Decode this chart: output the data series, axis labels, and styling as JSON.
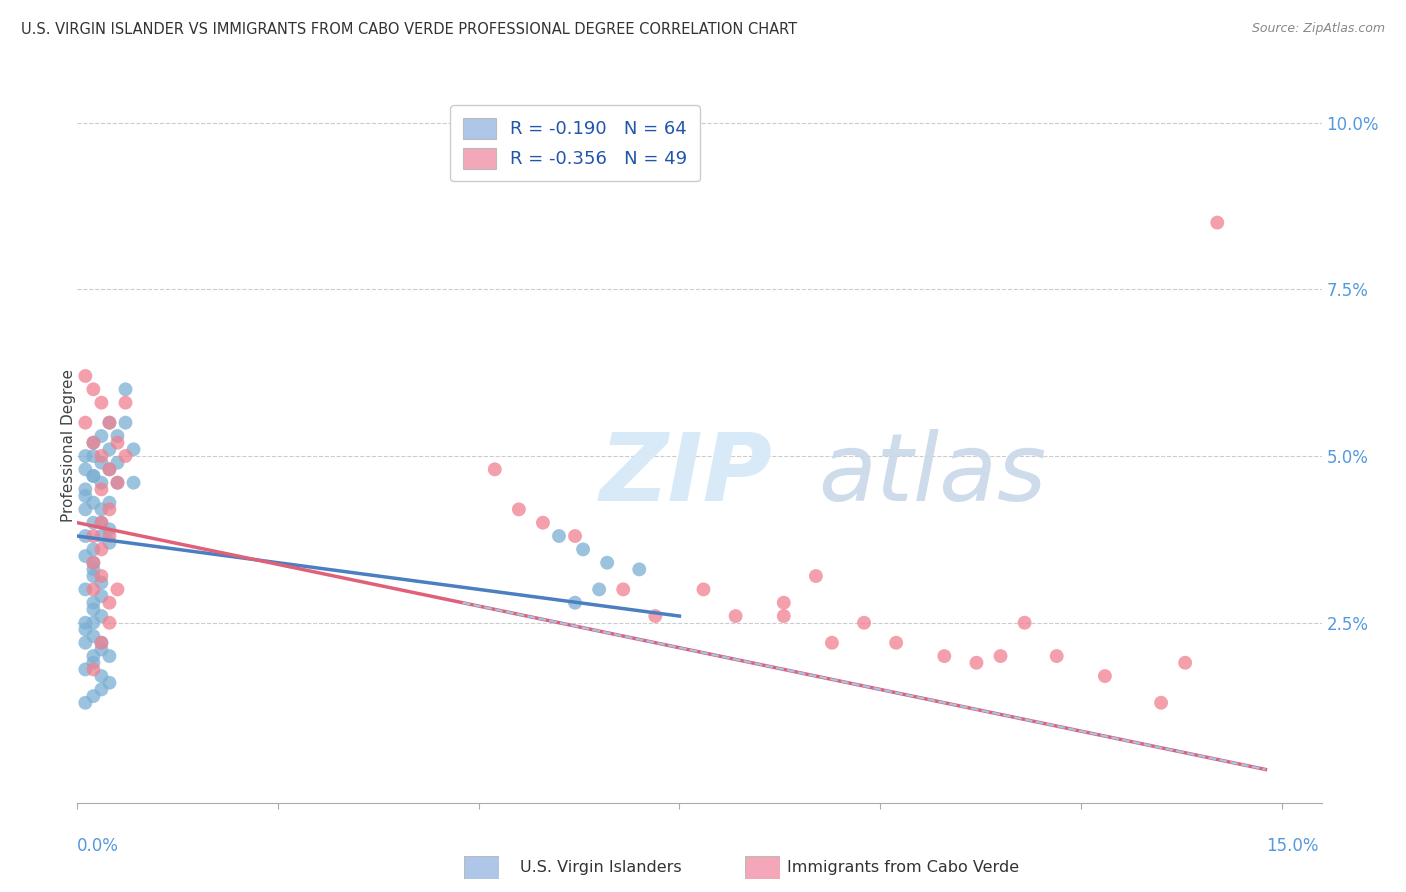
{
  "title": "U.S. VIRGIN ISLANDER VS IMMIGRANTS FROM CABO VERDE PROFESSIONAL DEGREE CORRELATION CHART",
  "source": "Source: ZipAtlas.com",
  "ylabel": "Professional Degree",
  "right_yticks": [
    "10.0%",
    "7.5%",
    "5.0%",
    "2.5%"
  ],
  "right_ytick_vals": [
    0.1,
    0.075,
    0.05,
    0.025
  ],
  "legend_label1": "R = -0.190   N = 64",
  "legend_label2": "R = -0.356   N = 49",
  "legend_color1": "#aec6e8",
  "legend_color2": "#f4a7b9",
  "scatter_color1": "#7bafd4",
  "scatter_color2": "#f08090",
  "line_color1": "#4a7fc1",
  "line_color2": "#e0607a",
  "line_dashed_color": "#a0c8e8",
  "watermark_zip": "ZIP",
  "watermark_atlas": "atlas",
  "xlim": [
    0.0,
    0.155
  ],
  "ylim": [
    -0.002,
    0.105
  ],
  "blue_scatter_x": [
    0.001,
    0.001,
    0.001,
    0.001,
    0.001,
    0.001,
    0.002,
    0.002,
    0.002,
    0.002,
    0.002,
    0.002,
    0.002,
    0.003,
    0.003,
    0.003,
    0.003,
    0.003,
    0.004,
    0.004,
    0.004,
    0.004,
    0.004,
    0.005,
    0.005,
    0.005,
    0.006,
    0.006,
    0.007,
    0.007,
    0.002,
    0.001,
    0.003,
    0.002,
    0.001,
    0.003,
    0.002,
    0.001,
    0.002,
    0.003,
    0.001,
    0.002,
    0.003,
    0.004,
    0.003,
    0.002,
    0.001,
    0.002,
    0.003,
    0.004,
    0.002,
    0.001,
    0.003,
    0.002,
    0.004,
    0.003,
    0.001,
    0.002,
    0.06,
    0.063,
    0.066,
    0.07,
    0.065,
    0.062
  ],
  "blue_scatter_y": [
    0.05,
    0.048,
    0.045,
    0.042,
    0.038,
    0.035,
    0.052,
    0.05,
    0.047,
    0.043,
    0.04,
    0.036,
    0.033,
    0.053,
    0.049,
    0.046,
    0.042,
    0.038,
    0.055,
    0.051,
    0.048,
    0.043,
    0.039,
    0.053,
    0.049,
    0.046,
    0.06,
    0.055,
    0.051,
    0.046,
    0.032,
    0.03,
    0.029,
    0.027,
    0.025,
    0.026,
    0.023,
    0.022,
    0.02,
    0.021,
    0.018,
    0.019,
    0.017,
    0.016,
    0.015,
    0.014,
    0.013,
    0.025,
    0.022,
    0.02,
    0.028,
    0.024,
    0.031,
    0.034,
    0.037,
    0.04,
    0.044,
    0.047,
    0.038,
    0.036,
    0.034,
    0.033,
    0.03,
    0.028
  ],
  "pink_scatter_x": [
    0.001,
    0.001,
    0.002,
    0.002,
    0.003,
    0.003,
    0.003,
    0.004,
    0.004,
    0.004,
    0.005,
    0.005,
    0.006,
    0.006,
    0.002,
    0.003,
    0.002,
    0.003,
    0.004,
    0.002,
    0.003,
    0.004,
    0.005,
    0.004,
    0.003,
    0.002,
    0.052,
    0.058,
    0.055,
    0.062,
    0.068,
    0.072,
    0.078,
    0.082,
    0.088,
    0.092,
    0.098,
    0.102,
    0.108,
    0.112,
    0.088,
    0.094,
    0.118,
    0.122,
    0.128,
    0.115,
    0.135,
    0.138,
    0.142
  ],
  "pink_scatter_y": [
    0.062,
    0.055,
    0.06,
    0.052,
    0.058,
    0.05,
    0.045,
    0.055,
    0.048,
    0.042,
    0.052,
    0.046,
    0.058,
    0.05,
    0.038,
    0.04,
    0.034,
    0.036,
    0.038,
    0.03,
    0.032,
    0.028,
    0.03,
    0.025,
    0.022,
    0.018,
    0.048,
    0.04,
    0.042,
    0.038,
    0.03,
    0.026,
    0.03,
    0.026,
    0.028,
    0.032,
    0.025,
    0.022,
    0.02,
    0.019,
    0.026,
    0.022,
    0.025,
    0.02,
    0.017,
    0.02,
    0.013,
    0.019,
    0.085
  ],
  "blue_line_x": [
    0.0,
    0.075
  ],
  "blue_line_y": [
    0.038,
    0.026
  ],
  "pink_line_x": [
    0.0,
    0.148
  ],
  "pink_line_y": [
    0.04,
    0.003
  ],
  "dashed_line_x": [
    0.048,
    0.148
  ],
  "dashed_line_y": [
    0.028,
    0.003
  ],
  "bottom_legend_label1": "U.S. Virgin Islanders",
  "bottom_legend_label2": "Immigrants from Cabo Verde"
}
